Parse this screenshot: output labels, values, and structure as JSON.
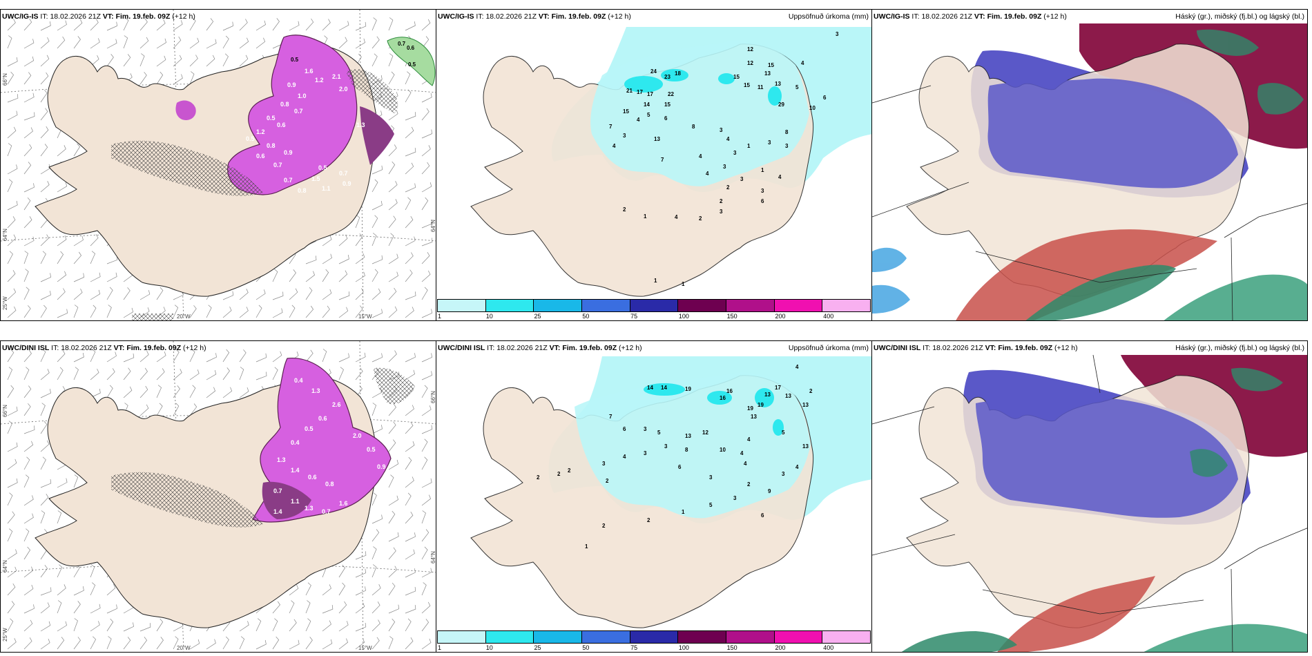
{
  "rows": [
    {
      "model": "UWC/IG-IS",
      "it_label": "IT:",
      "it_value": "18.02.2026 21Z",
      "vt_label": "VT:",
      "vt_value": "Fim. 19.feb. 09Z",
      "lead": "(+12 h)"
    },
    {
      "model": "UWC/DINI ISL",
      "it_label": "IT:",
      "it_value": "18.02.2026 21Z",
      "vt_label": "VT:",
      "vt_value": "Fim. 19.feb. 09Z",
      "lead": "(+12 h)"
    }
  ],
  "precip_panel_title": "Uppsöfnuð úrkoma (mm)",
  "cloud_panel_title": "Háský (gr.), miðský (fj.bl.) og lágský (bl.)",
  "precip_legend": {
    "ticks": [
      "1",
      "10",
      "25",
      "50",
      "75",
      "100",
      "150",
      "200",
      "400"
    ],
    "colors": [
      "#c6f6f8",
      "#2ee8ee",
      "#19b8e8",
      "#3a6ee0",
      "#2a2aa8",
      "#6e0050",
      "#b0108a",
      "#f010b0",
      "#f8b0f0"
    ]
  },
  "axis_labels": {
    "lat_66": "66°N",
    "lat_64": "64°N",
    "lon_25": "25°W",
    "lon_20": "20°W",
    "lon_15": "15°W"
  },
  "row1_snow_labels": [
    "0.7",
    "0.6",
    "0.5",
    "0.5",
    "1.6",
    "1.2",
    "2.1",
    "2.0",
    "0.9",
    "1.0",
    "0.8",
    "0.7",
    "0.5",
    "0.6",
    "1.2",
    "0.5",
    "0.8",
    "0.9",
    "0.6",
    "0.7",
    "0.5",
    "0.7",
    "1.5",
    "0.7",
    "0.8",
    "1.1",
    "0.9",
    "1.3"
  ],
  "row2_snow_labels": [
    "0.4",
    "1.3",
    "2.6",
    "0.6",
    "0.5",
    "0.4",
    "1.3",
    "1.4",
    "0.6",
    "0.8",
    "0.7",
    "1.1",
    "2.0",
    "0.5",
    "0.9",
    "1.3",
    "0.7",
    "1.6",
    "1.4"
  ],
  "row1_precip_labels": [
    "3",
    "12",
    "12",
    "15",
    "4",
    "24",
    "18",
    "23",
    "13",
    "21",
    "17",
    "17",
    "22",
    "15",
    "15",
    "11",
    "13",
    "5",
    "14",
    "15",
    "5",
    "4",
    "15",
    "7",
    "6",
    "8",
    "3",
    "4",
    "29",
    "10",
    "6",
    "1",
    "3",
    "3",
    "4",
    "7",
    "3",
    "4",
    "13",
    "3",
    "8",
    "3",
    "4",
    "3",
    "1",
    "4",
    "2",
    "3",
    "2",
    "2",
    "6",
    "3",
    "4",
    "2",
    "1",
    "1",
    "1"
  ],
  "row2_precip_labels": [
    "4",
    "17",
    "13",
    "14",
    "14",
    "19",
    "16",
    "19",
    "13",
    "13",
    "16",
    "19",
    "2",
    "7",
    "13",
    "6",
    "13",
    "12",
    "3",
    "5",
    "8",
    "10",
    "4",
    "5",
    "13",
    "4",
    "3",
    "3",
    "4",
    "3",
    "6",
    "2",
    "3",
    "4",
    "2",
    "9",
    "3",
    "6",
    "4",
    "3",
    "5",
    "1",
    "2",
    "2",
    "2",
    "2",
    "2",
    "1"
  ]
}
